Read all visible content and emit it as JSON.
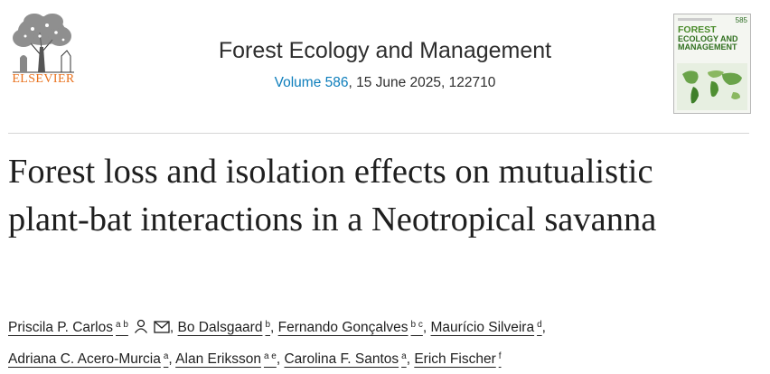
{
  "header": {
    "publisher": "ELSEVIER",
    "journal_name": "Forest Ecology and Management",
    "volume_link": "Volume 586",
    "citation_rest": ", 15 June 2025, 122710",
    "cover": {
      "issue_number": "585",
      "title_line1": "FOREST",
      "title_line2": "ECOLOGY AND",
      "title_line3": "MANAGEMENT"
    }
  },
  "article": {
    "title": "Forest loss and isolation effects on mutualistic plant-bat interactions in a Neotropical savanna",
    "authors": [
      {
        "name": "Priscila P. Carlos",
        "aff": "a b"
      },
      {
        "name": "Bo Dalsgaard",
        "aff": "b"
      },
      {
        "name": "Fernando Gonçalves",
        "aff": "b c"
      },
      {
        "name": "Maurício Silveira",
        "aff": "d"
      },
      {
        "name": "Adriana C. Acero-Murcia",
        "aff": "a"
      },
      {
        "name": "Alan Eriksson",
        "aff": "a e"
      },
      {
        "name": "Carolina F. Santos",
        "aff": "a"
      },
      {
        "name": "Erich Fischer",
        "aff": "f"
      }
    ],
    "icons": [
      "person-icon",
      "envelope-icon"
    ]
  },
  "colors": {
    "publisher_orange": "#e9711c",
    "link_blue": "#0c7dbb",
    "text": "#1f1f1f"
  }
}
